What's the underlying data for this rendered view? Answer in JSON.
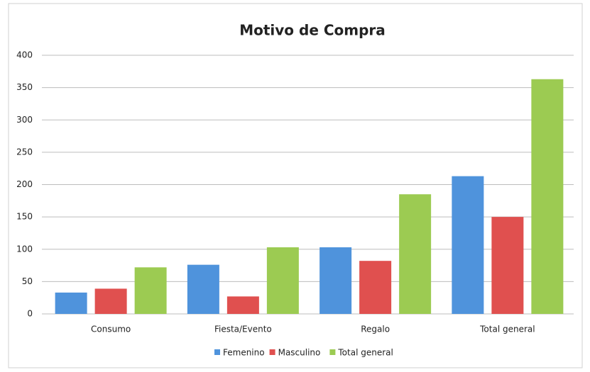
{
  "chart_data": {
    "type": "bar",
    "title": "Motivo de Compra",
    "categories": [
      "Consumo",
      "Fiesta/Evento",
      "Regalo",
      "Total general"
    ],
    "series": [
      {
        "name": "Femenino",
        "color": "#4f93dc",
        "values": [
          33,
          76,
          103,
          213
        ]
      },
      {
        "name": "Masculino",
        "color": "#e0504f",
        "values": [
          39,
          27,
          82,
          150
        ]
      },
      {
        "name": "Total general",
        "color": "#9ccb52",
        "values": [
          72,
          103,
          185,
          363
        ]
      }
    ],
    "ylim": [
      0,
      400
    ],
    "yticks": [
      0,
      50,
      100,
      150,
      200,
      250,
      300,
      350,
      400
    ],
    "grid": true,
    "legend": "bottom"
  }
}
